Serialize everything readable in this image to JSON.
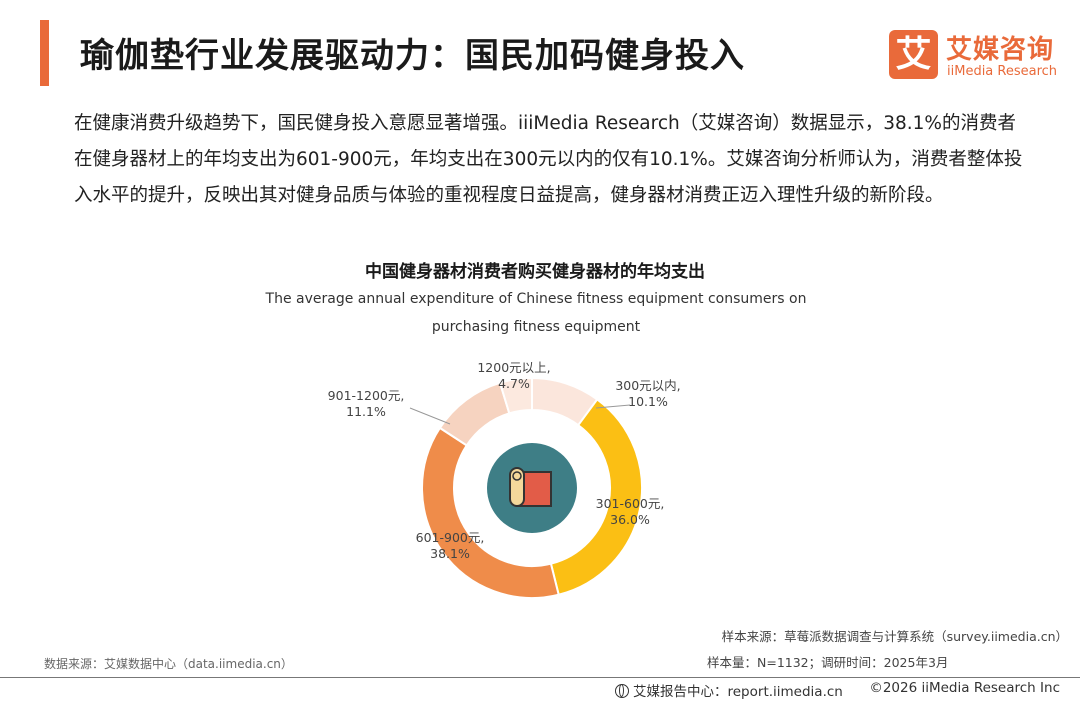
{
  "header": {
    "title": "瑜伽垫行业发展驱动力：国民加码健身投入"
  },
  "brand": {
    "logo_mark": "艾",
    "name": "艾媒咨询",
    "sub": "iiMedia Research"
  },
  "intro": {
    "text": "在健康消费升级趋势下，国民健身投入意愿显著增强。iiiMedia Research（艾媒咨询）数据显示，38.1%的消费者在健身器材上的年均支出为601-900元，年均支出在300元以内的仅有10.1%。艾媒咨询分析师认为，消费者整体投入水平的提升，反映出其对健身品质与体验的重视程度日益提高，健身器材消费正迈入理性升级的新阶段。"
  },
  "chart_data": {
    "type": "pie",
    "donut": true,
    "title": "中国健身器材消费者购买健身器材的年均支出",
    "subtitle": "The average annual expenditure of Chinese fitness equipment consumers on purchasing fitness equipment",
    "slices": [
      {
        "label": "300元以内,",
        "value": 10.1,
        "display": "10.1%",
        "color": "#fbe6dc"
      },
      {
        "label": "301-600元,",
        "value": 36.0,
        "display": "36.0%",
        "color": "#fbbf14"
      },
      {
        "label": "601-900元,",
        "value": 38.1,
        "display": "38.1%",
        "color": "#ef8c4a"
      },
      {
        "label": "901-1200元,",
        "value": 11.1,
        "display": "11.1%",
        "color": "#f6d3c0"
      },
      {
        "label": "1200元以上,",
        "value": 4.7,
        "display": "4.7%",
        "color": "#fce9df"
      }
    ],
    "center_icon": "yoga-mat-icon"
  },
  "sources": {
    "sample_source": "样本来源：草莓派数据调查与计算系统（survey.iimedia.cn）",
    "sample_size": "样本量：N=1132；调研时间：2025年3月",
    "data_source": "数据来源：艾媒数据中心（data.iimedia.cn）"
  },
  "footer": {
    "site": "艾媒报告中心：report.iimedia.cn",
    "copyright": "©2026  iiMedia Research  Inc"
  }
}
